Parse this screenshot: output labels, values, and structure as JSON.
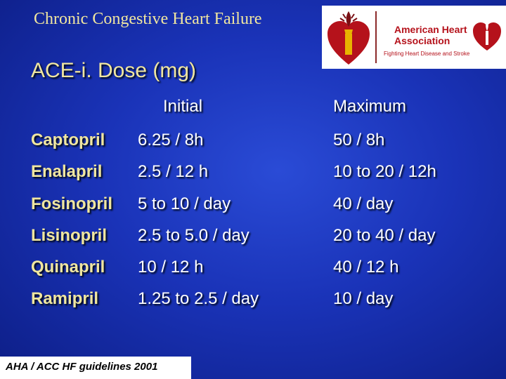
{
  "header": {
    "title": "Chronic Congestive Heart Failure"
  },
  "logo": {
    "name_line1": "American Heart",
    "name_line2": "Association",
    "tagline": "Fighting Heart Disease and Stroke",
    "brand_color": "#b5121b",
    "icons": [
      "heart-torch-icon",
      "heart-torch-small-icon"
    ]
  },
  "slide": {
    "title": "ACE-i. Dose (mg)",
    "columns": {
      "initial": "Initial",
      "maximum": "Maximum"
    },
    "rows": [
      {
        "drug": "Captopril",
        "initial": "6.25 / 8h",
        "maximum": "50 / 8h"
      },
      {
        "drug": "Enalapril",
        "initial": "2.5 / 12 h",
        "maximum": "10 to 20 / 12h"
      },
      {
        "drug": "Fosinopril",
        "initial": "5 to 10 / day",
        "maximum": "40 / day"
      },
      {
        "drug": "Lisinopril",
        "initial": "2.5 to 5.0 / day",
        "maximum": "20 to 40 / day"
      },
      {
        "drug": "Quinapril",
        "initial": "10 / 12 h",
        "maximum": "40 / 12 h"
      },
      {
        "drug": "Ramipril",
        "initial": "1.25 to 2.5 / day",
        "maximum": "10 / day"
      }
    ]
  },
  "footnote": {
    "text": "AHA / ACC HF guidelines 2001"
  },
  "colors": {
    "background": "#1a33b8",
    "title_text": "#f0e6a0",
    "body_text": "#ffffff"
  }
}
